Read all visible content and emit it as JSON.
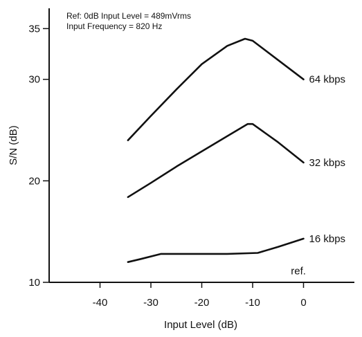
{
  "chart_data": {
    "type": "line",
    "title": "",
    "xlabel": "Input Level (dB)",
    "ylabel": "S/N (dB)",
    "xlim": [
      -50,
      10
    ],
    "ylim": [
      10,
      37
    ],
    "grid": false,
    "notes": [
      "Ref: 0dB Input Level = 489mVrms",
      "Input Frequency = 820 Hz"
    ],
    "x_ticks": [
      -40,
      -30,
      -20,
      -10,
      0
    ],
    "y_ticks": [
      10,
      20,
      30,
      35
    ],
    "annotations": [
      {
        "text": "ref.",
        "x": -1,
        "y": 10.8
      }
    ],
    "series": [
      {
        "name": "64 kbps",
        "points": [
          [
            -34.5,
            24.0
          ],
          [
            -30,
            26.4
          ],
          [
            -25,
            29.0
          ],
          [
            -20,
            31.5
          ],
          [
            -15,
            33.3
          ],
          [
            -11.5,
            34.0
          ],
          [
            -10,
            33.8
          ],
          [
            -5,
            31.9
          ],
          [
            0,
            30.0
          ]
        ]
      },
      {
        "name": "32 kbps",
        "points": [
          [
            -34.5,
            18.4
          ],
          [
            -30,
            19.8
          ],
          [
            -25,
            21.4
          ],
          [
            -20,
            22.9
          ],
          [
            -15,
            24.4
          ],
          [
            -11,
            25.6
          ],
          [
            -10,
            25.6
          ],
          [
            -5,
            23.8
          ],
          [
            0,
            21.8
          ]
        ]
      },
      {
        "name": "16 kbps",
        "points": [
          [
            -34.5,
            12.0
          ],
          [
            -32,
            12.3
          ],
          [
            -28,
            12.8
          ],
          [
            -20,
            12.8
          ],
          [
            -15,
            12.8
          ],
          [
            -9,
            12.9
          ],
          [
            -5,
            13.5
          ],
          [
            0,
            14.3
          ]
        ]
      }
    ]
  }
}
